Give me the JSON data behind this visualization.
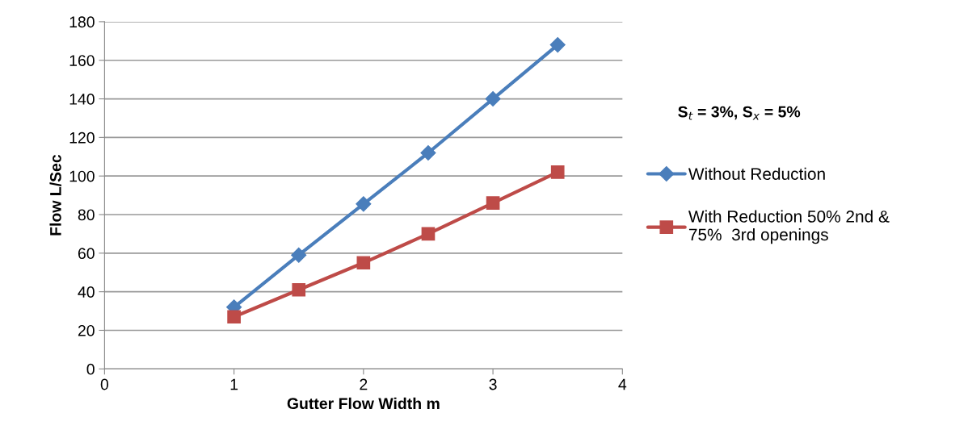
{
  "chart_data": {
    "type": "line",
    "xlabel": "Gutter Flow Width m",
    "ylabel": "Flow L/Sec",
    "x": [
      1,
      1.5,
      2,
      2.5,
      3,
      3.5
    ],
    "series": [
      {
        "name": "Without Reduction",
        "color": "#4a7ebb",
        "marker": "diamond",
        "values": [
          32,
          59,
          85.5,
          112,
          140,
          168
        ]
      },
      {
        "name": "With Reduction 50% 2nd &\n75%  3rd openings",
        "color": "#be4b48",
        "marker": "square",
        "values": [
          27,
          41,
          55,
          70,
          86,
          102
        ]
      }
    ],
    "xlim": [
      0,
      4
    ],
    "xticks": [
      0,
      1,
      2,
      3,
      4
    ],
    "ylim": [
      0,
      180
    ],
    "yticks": [
      0,
      20,
      40,
      60,
      80,
      100,
      120,
      140,
      160,
      180
    ],
    "grid": "y",
    "legend": "right",
    "line_style": "solid",
    "annotations": [
      "S$_{t}$ = 3%, S$_{x}$ = 5%"
    ]
  }
}
